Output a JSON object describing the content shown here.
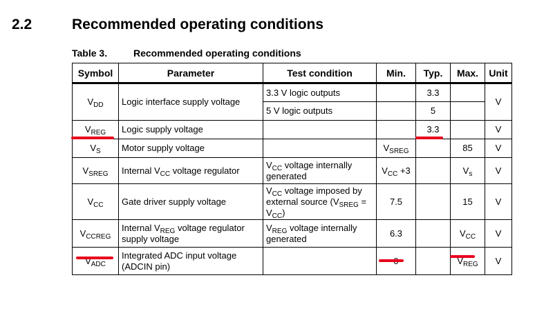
{
  "section": {
    "number": "2.2",
    "title": "Recommended operating conditions"
  },
  "table": {
    "caption_number": "Table 3.",
    "caption_title": "Recommended operating conditions",
    "headers": {
      "symbol": "Symbol",
      "parameter": "Parameter",
      "test_condition": "Test condition",
      "min": "Min.",
      "typ": "Typ.",
      "max": "Max.",
      "unit": "Unit"
    },
    "rows": {
      "vdd": {
        "sym": "V",
        "sym_sub": "DD",
        "param": "Logic interface supply voltage",
        "test1": "3.3 V logic outputs",
        "typ1": "3.3",
        "test2": "5 V logic outputs",
        "typ2": "5",
        "unit": "V"
      },
      "vreg": {
        "sym": "V",
        "sym_sub": "REG",
        "param": "Logic supply voltage",
        "typ": "3.3",
        "unit": "V"
      },
      "vs": {
        "sym": "V",
        "sym_sub": "S",
        "param": "Motor supply voltage",
        "min": "V",
        "min_sub": "SREG",
        "max": "85",
        "unit": "V"
      },
      "vsreg": {
        "sym": "V",
        "sym_sub": "SREG",
        "param_a": "Internal V",
        "param_sub": "CC",
        "param_b": " voltage regulator",
        "test_a": "V",
        "test_sub": "CC",
        "test_b": " voltage internally generated",
        "min_a": "V",
        "min_sub": "CC",
        "min_b": " +3",
        "max": "V",
        "max_sub": "s",
        "unit": "V"
      },
      "vcc": {
        "sym": "V",
        "sym_sub": "CC",
        "param": "Gate driver supply voltage",
        "test_a": "V",
        "test_sub1": "CC",
        "test_b": " voltage imposed by external source (V",
        "test_sub2": "SREG",
        "test_c": " = V",
        "test_sub3": "CC",
        "test_d": ")",
        "min": "7.5",
        "max": "15",
        "unit": "V"
      },
      "vccreg": {
        "sym": "V",
        "sym_sub": "CCREG",
        "param_a": "Internal V",
        "param_sub": "REG",
        "param_b": " voltage regulator supply voltage",
        "test_a": "V",
        "test_sub": "REG",
        "test_b": " voltage internally generated",
        "min": "6.3",
        "max": "V",
        "max_sub": "CC",
        "unit": "V"
      },
      "vadc": {
        "sym": "V",
        "sym_sub": "ADC",
        "param": "Integrated ADC input voltage (ADCIN pin)",
        "min": "0",
        "max": "V",
        "max_sub": "REG",
        "unit": "V"
      }
    }
  },
  "annotation_color": "#e8001c"
}
